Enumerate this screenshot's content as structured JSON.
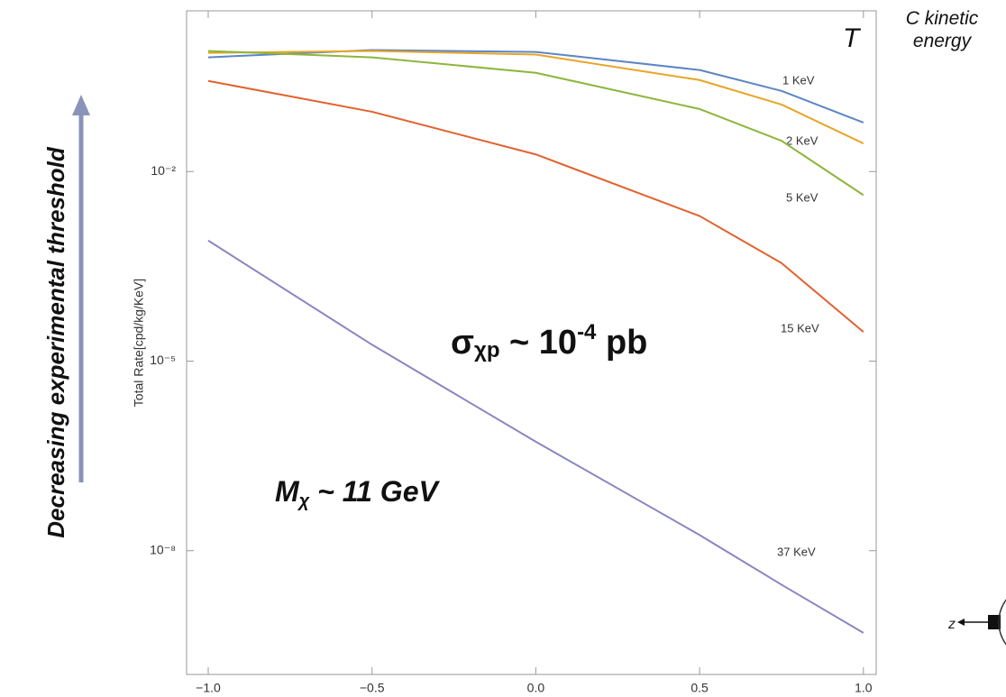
{
  "chart_data": {
    "type": "line",
    "y_label": "Total Rate[cpd/kg/KeV]",
    "x": [
      -1.0,
      -0.5,
      0.0,
      0.5,
      0.75,
      1.0
    ],
    "series": [
      {
        "name": "1 KeV",
        "color": "#5b86c4",
        "values": [
          0.643,
          0.837,
          0.783,
          0.405,
          0.189,
          0.0596
        ]
      },
      {
        "name": "2 KeV",
        "color": "#e8a526",
        "values": [
          0.757,
          0.81,
          0.71,
          0.281,
          0.115,
          0.0279
        ]
      },
      {
        "name": "5 KeV",
        "color": "#8db63c",
        "values": [
          0.81,
          0.643,
          0.366,
          0.0977,
          0.0307,
          0.00424
        ]
      },
      {
        "name": "15 KeV",
        "color": "#e2622f",
        "values": [
          0.272,
          0.0885,
          0.0187,
          0.00198,
          0.000356,
          2.9e-05
        ]
      },
      {
        "name": "37 KeV",
        "color": "#8a86c0",
        "values": [
          0.00081,
          1.82e-05,
          5.3e-07,
          1.77e-08,
          2.9e-09,
          5e-10
        ]
      }
    ],
    "xlim": [
      -1.066,
      1.039
    ],
    "ylim": [
      1.1e-10,
      3.5
    ],
    "log_y": true,
    "xticks": [
      {
        "value": -1.0,
        "label": "−1.0"
      },
      {
        "value": -0.5,
        "label": "−0.5"
      },
      {
        "value": 0.0,
        "label": "0.0"
      },
      {
        "value": 0.5,
        "label": "0.5"
      },
      {
        "value": 1.0,
        "label": "1.0"
      }
    ],
    "yticks": [
      {
        "value": 0.01,
        "label": "10⁻²"
      },
      {
        "value": 1e-05,
        "label": "10⁻⁵"
      },
      {
        "value": 1e-08,
        "label": "10⁻⁸"
      }
    ],
    "annotations": {
      "corner": "T",
      "corner_note": "C kinetic energy",
      "cross_section": {
        "base": "σ",
        "sub": "χp",
        "mid": " ~ 10",
        "sup": "-4",
        "end": " pb"
      },
      "mass": {
        "base": "M",
        "sub": "χ",
        "end": " ~ 11 GeV"
      },
      "side_note": "Decreasing experimental threshold",
      "icon_label": "z"
    }
  }
}
